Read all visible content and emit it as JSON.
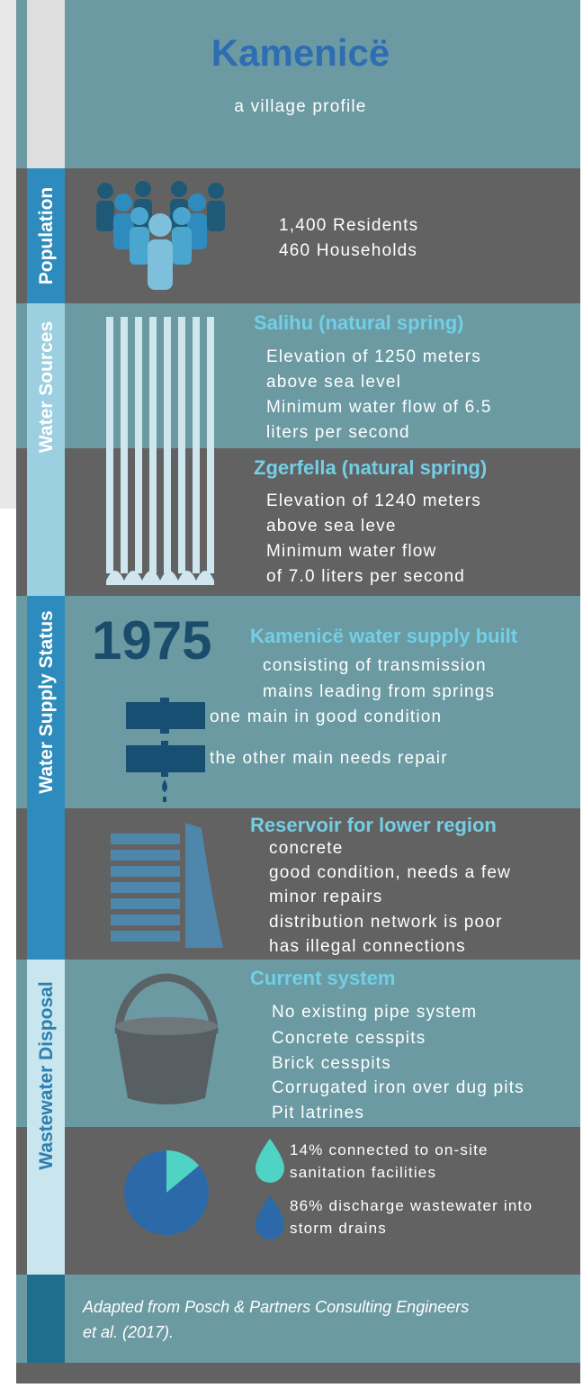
{
  "header": {
    "title": "Kamenicë",
    "subtitle": "a village profile"
  },
  "population": {
    "label": "Population",
    "lines": [
      "1,400 Residents",
      "460 Households"
    ]
  },
  "water_sources": {
    "label": "Water Sources",
    "springs": [
      {
        "name": "Salihu (natural spring)",
        "lines": [
          "Elevation of 1250 meters",
          "above sea level",
          "Minimum water flow of 6.5",
          "liters per second"
        ]
      },
      {
        "name": "Zgerfella (natural spring)",
        "lines": [
          "Elevation of 1240 meters",
          "above sea leve",
          "Minimum water flow",
          "of 7.0 liters per second"
        ]
      }
    ]
  },
  "water_supply_status": {
    "label": "Water Supply Status",
    "year": "1975",
    "heading": "Kamenicë water supply built",
    "lines": [
      "consisting of transmission",
      "mains leading from springs"
    ],
    "mains": [
      "one main in good condition",
      "the other main needs repair"
    ],
    "reservoir": {
      "heading": "Reservoir for lower region",
      "lines": [
        "concrete",
        "good condition, needs a few",
        "minor repairs",
        "distribution network is poor",
        "has illegal connections"
      ]
    }
  },
  "wastewater_disposal": {
    "label": "Wastewater Disposal",
    "heading": "Current system",
    "lines": [
      "No existing pipe system",
      "Concrete cesspits",
      "Brick cesspits",
      "Corrugated iron over dug pits",
      "Pit latrines"
    ],
    "pie": {
      "values": [
        14,
        86
      ],
      "colors": [
        "#4fd3c4",
        "#2c69a8"
      ],
      "labels": [
        [
          "14% connected to on-site",
          "sanitation facilities"
        ],
        [
          "86% discharge wastewater into",
          "storm drains"
        ]
      ]
    }
  },
  "footer": {
    "source": [
      "Adapted from Posch & Partners Consulting Engineers",
      "et al. (2017)."
    ]
  }
}
